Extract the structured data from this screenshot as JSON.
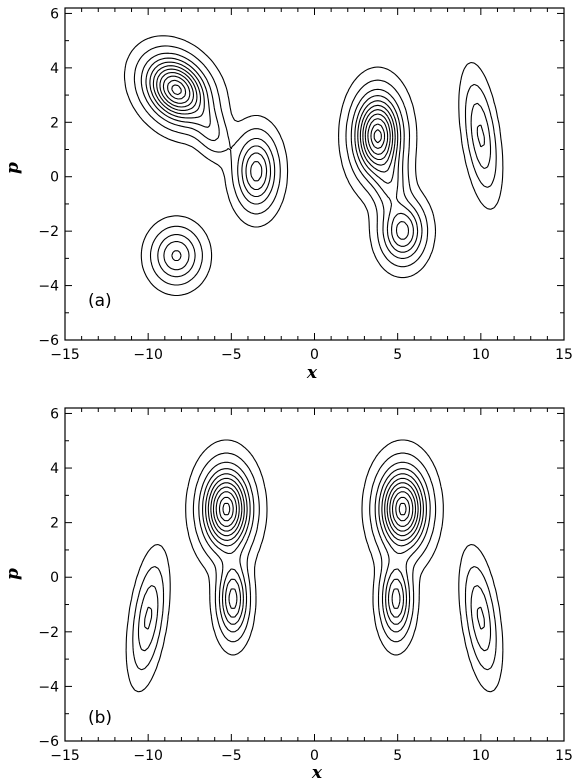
{
  "chart_data": [
    {
      "type": "contour",
      "panel_label": "(a)",
      "xlabel": "x",
      "ylabel": "p",
      "xlim": [
        -15,
        15
      ],
      "ylim": [
        -6,
        6.2
      ],
      "x_ticks": [
        -15,
        -10,
        -5,
        0,
        5,
        10,
        15
      ],
      "y_ticks": [
        -6,
        -4,
        -2,
        0,
        2,
        4,
        6
      ],
      "x_tick_labels": [
        "-15",
        "-10",
        "-5",
        "0",
        "5",
        "10",
        "15"
      ],
      "y_tick_labels": [
        "-6",
        "-4",
        "-2",
        "0",
        "2",
        "4",
        "6"
      ],
      "peaks": [
        {
          "x": -8.3,
          "p": 3.2,
          "sx": 1.7,
          "sy": 1.0,
          "rot": -0.25,
          "amp": 1.0
        },
        {
          "x": -3.5,
          "p": 0.2,
          "sx": 1.1,
          "sy": 1.2,
          "rot": 0.0,
          "amp": 0.55
        },
        {
          "x": -6.2,
          "p": 1.7,
          "sx": 1.1,
          "sy": 0.7,
          "rot": -0.6,
          "amp": 0.22
        },
        {
          "x": -8.3,
          "p": -2.9,
          "sx": 1.3,
          "sy": 0.9,
          "rot": 0.0,
          "amp": 0.42
        },
        {
          "x": 3.8,
          "p": 1.5,
          "sx": 1.25,
          "sy": 1.35,
          "rot": 0.0,
          "amp": 1.0
        },
        {
          "x": 5.3,
          "p": -2.0,
          "sx": 1.15,
          "sy": 1.0,
          "rot": 0.0,
          "amp": 0.55
        },
        {
          "x": 4.6,
          "p": -0.3,
          "sx": 0.9,
          "sy": 0.9,
          "rot": 0.0,
          "amp": 0.25
        },
        {
          "x": 10.0,
          "p": 1.5,
          "sx": 0.75,
          "sy": 1.8,
          "rot": 0.25,
          "amp": 0.32
        }
      ],
      "contour_levels": [
        0.03,
        0.1,
        0.2,
        0.3,
        0.4,
        0.5,
        0.6,
        0.7,
        0.8,
        0.9,
        0.97
      ]
    },
    {
      "type": "contour",
      "panel_label": "(b)",
      "xlabel": "x",
      "ylabel": "p",
      "xlim": [
        -15,
        15
      ],
      "ylim": [
        -6,
        6.2
      ],
      "x_ticks": [
        -15,
        -10,
        -5,
        0,
        5,
        10,
        15
      ],
      "y_ticks": [
        -6,
        -4,
        -2,
        0,
        2,
        4,
        6
      ],
      "x_tick_labels": [
        "-15",
        "-10",
        "-5",
        "0",
        "5",
        "10",
        "15"
      ],
      "y_tick_labels": [
        "-6",
        "-4",
        "-2",
        "0",
        "2",
        "4",
        "6"
      ],
      "peaks": [
        {
          "x": -5.3,
          "p": 2.5,
          "sx": 1.3,
          "sy": 1.35,
          "rot": 0.0,
          "amp": 1.0
        },
        {
          "x": -4.9,
          "p": -0.8,
          "sx": 0.8,
          "sy": 1.2,
          "rot": 0.0,
          "amp": 0.55
        },
        {
          "x": -10.0,
          "p": -1.5,
          "sx": 0.75,
          "sy": 1.8,
          "rot": -0.25,
          "amp": 0.32
        },
        {
          "x": 5.3,
          "p": 2.5,
          "sx": 1.3,
          "sy": 1.35,
          "rot": 0.0,
          "amp": 1.0
        },
        {
          "x": 4.9,
          "p": -0.8,
          "sx": 0.8,
          "sy": 1.2,
          "rot": 0.0,
          "amp": 0.55
        },
        {
          "x": 10.0,
          "p": -1.5,
          "sx": 0.75,
          "sy": 1.8,
          "rot": 0.25,
          "amp": 0.32
        }
      ],
      "contour_levels": [
        0.03,
        0.1,
        0.2,
        0.3,
        0.4,
        0.5,
        0.6,
        0.7,
        0.8,
        0.9,
        0.97
      ]
    }
  ]
}
